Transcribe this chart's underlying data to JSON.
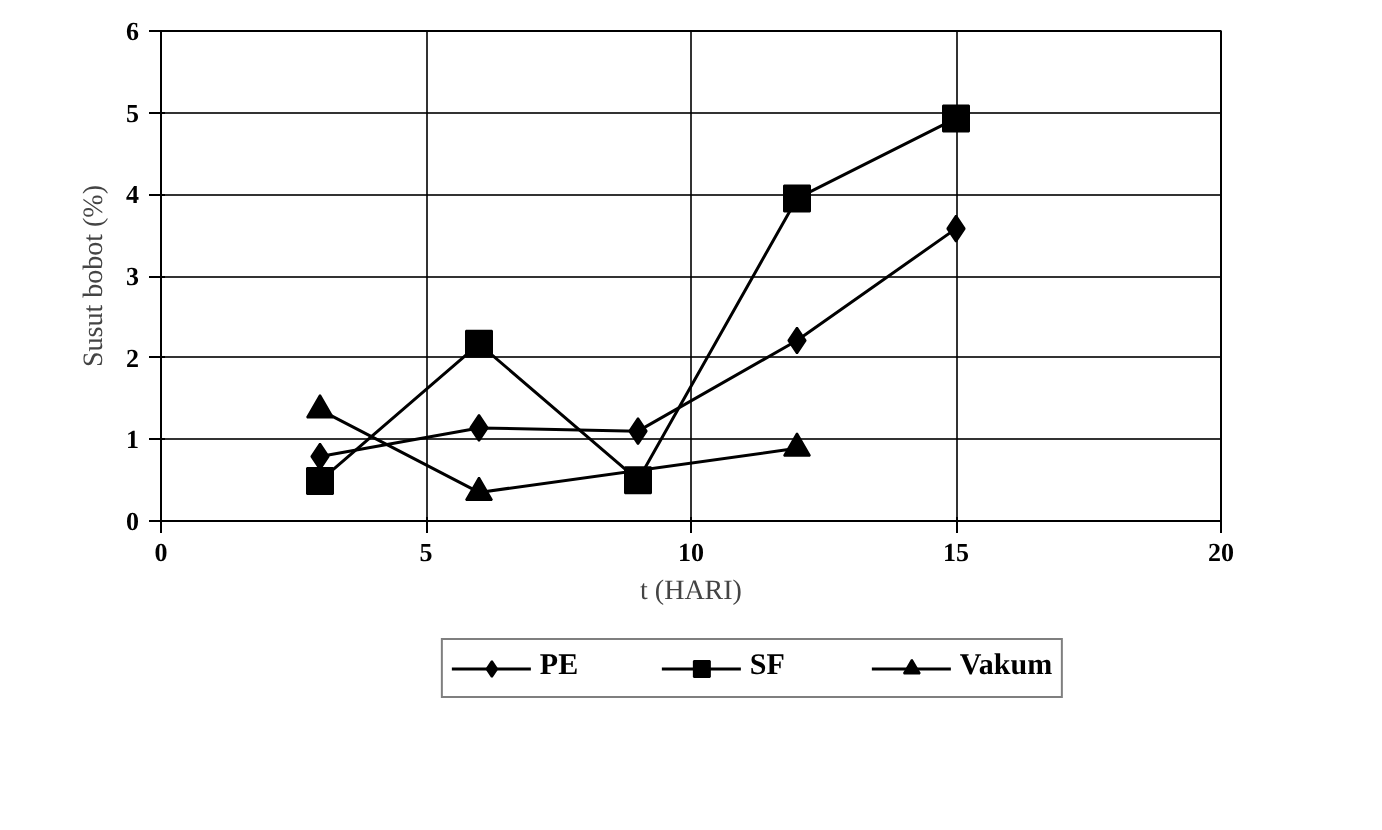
{
  "chart_data": {
    "type": "line",
    "xlabel": "t (HARI)",
    "ylabel": "Susut bobot (%)",
    "xlim": [
      0,
      20
    ],
    "xticks": [
      0,
      5,
      10,
      15,
      20
    ],
    "ylim": [
      0,
      6
    ],
    "yticks": [
      0,
      1,
      2,
      3,
      4,
      5,
      6
    ],
    "grid": true,
    "legend": "bottom",
    "line_style": "solid",
    "series": [
      {
        "name": "PE",
        "color": "#000000",
        "marker": "diamond",
        "x": [
          3,
          6,
          9,
          12,
          15
        ],
        "values": [
          0.79,
          1.14,
          1.1,
          2.21,
          3.58
        ]
      },
      {
        "name": "SF",
        "color": "#000000",
        "marker": "square",
        "x": [
          3,
          6,
          9,
          12,
          15
        ],
        "values": [
          0.49,
          2.17,
          0.5,
          3.95,
          4.93
        ]
      },
      {
        "name": "Vakum",
        "color": "#000000",
        "marker": "triangle",
        "x": [
          3,
          6,
          12
        ],
        "values": [
          1.36,
          0.35,
          0.89
        ]
      }
    ]
  }
}
